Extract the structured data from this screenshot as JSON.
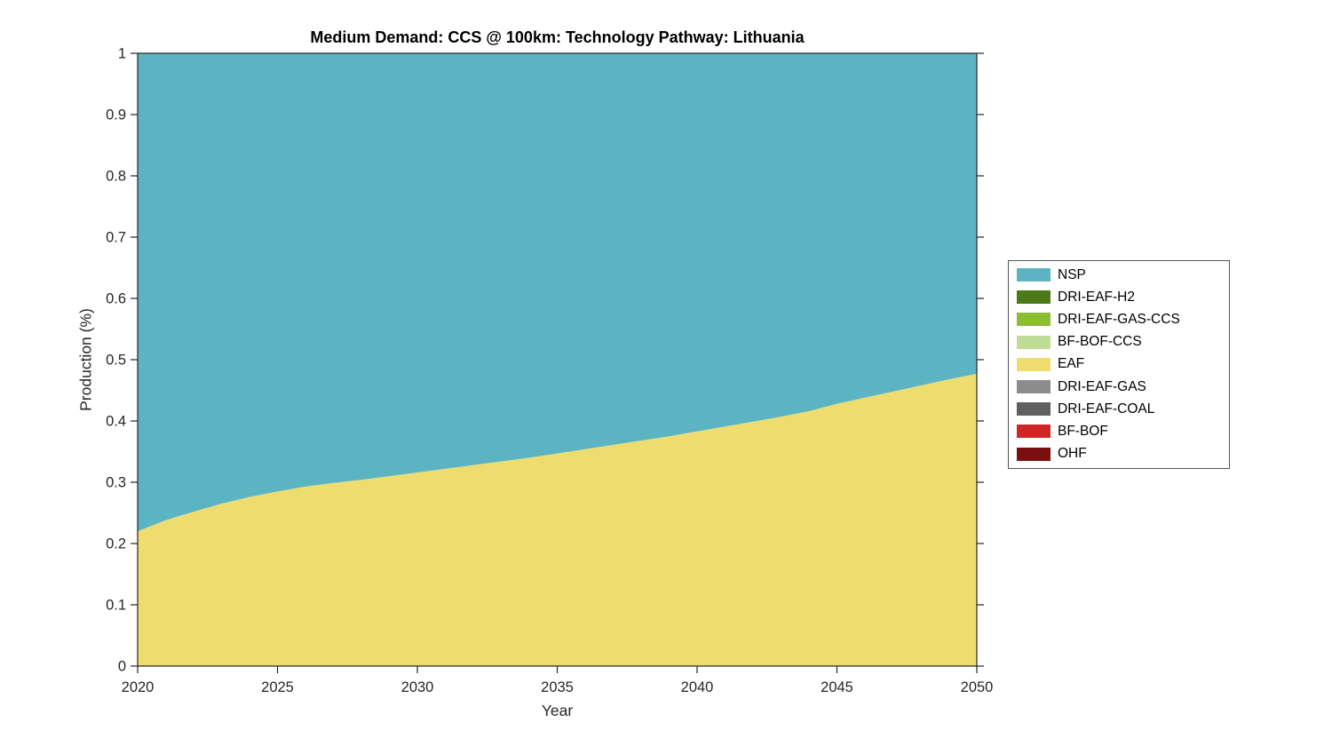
{
  "figure": {
    "background": "#ffffff",
    "axis_color": "#262626",
    "legend_border_color": "#555555"
  },
  "chart_data": {
    "type": "area",
    "title": "Medium Demand: CCS @ 100km: Technology Pathway: Lithuania",
    "xlabel": "Year",
    "ylabel": "Production (%)",
    "xlim": [
      2020,
      2050
    ],
    "ylim": [
      0,
      1
    ],
    "x_ticks": [
      2020,
      2025,
      2030,
      2035,
      2040,
      2045,
      2050
    ],
    "y_ticks": [
      0,
      0.1,
      0.2,
      0.3,
      0.4,
      0.5,
      0.6,
      0.7,
      0.8,
      0.9,
      1
    ],
    "y_tick_labels": [
      "0",
      "0.1",
      "0.2",
      "0.3",
      "0.4",
      "0.5",
      "0.6",
      "0.7",
      "0.8",
      "0.9",
      "1"
    ],
    "grid": false,
    "legend_position": "right-outside",
    "stack_order": "last-series-at-bottom",
    "x": [
      2020,
      2021,
      2022,
      2023,
      2024,
      2025,
      2026,
      2027,
      2028,
      2029,
      2030,
      2031,
      2032,
      2033,
      2034,
      2035,
      2036,
      2037,
      2038,
      2039,
      2040,
      2041,
      2042,
      2043,
      2044,
      2045,
      2046,
      2047,
      2048,
      2049,
      2050
    ],
    "series": [
      {
        "name": "NSP",
        "color": "#5CB4C2",
        "values": [
          0.78,
          0.762,
          0.748,
          0.735,
          0.724,
          0.715,
          0.707,
          0.701,
          0.696,
          0.69,
          0.684,
          0.678,
          0.672,
          0.666,
          0.66,
          0.653,
          0.646,
          0.639,
          0.632,
          0.625,
          0.617,
          0.609,
          0.601,
          0.593,
          0.584,
          0.572,
          0.562,
          0.552,
          0.542,
          0.532,
          0.523
        ]
      },
      {
        "name": "DRI-EAF-H2",
        "color": "#4C7A18",
        "values": [
          0,
          0,
          0,
          0,
          0,
          0,
          0,
          0,
          0,
          0,
          0,
          0,
          0,
          0,
          0,
          0,
          0,
          0,
          0,
          0,
          0,
          0,
          0,
          0,
          0,
          0,
          0,
          0,
          0,
          0,
          0
        ]
      },
      {
        "name": "DRI-EAF-GAS-CCS",
        "color": "#8CBE32",
        "values": [
          0,
          0,
          0,
          0,
          0,
          0,
          0,
          0,
          0,
          0,
          0,
          0,
          0,
          0,
          0,
          0,
          0,
          0,
          0,
          0,
          0,
          0,
          0,
          0,
          0,
          0,
          0,
          0,
          0,
          0,
          0
        ]
      },
      {
        "name": "BF-BOF-CCS",
        "color": "#BEDC96",
        "values": [
          0,
          0,
          0,
          0,
          0,
          0,
          0,
          0,
          0,
          0,
          0,
          0,
          0,
          0,
          0,
          0,
          0,
          0,
          0,
          0,
          0,
          0,
          0,
          0,
          0,
          0,
          0,
          0,
          0,
          0,
          0
        ]
      },
      {
        "name": "EAF",
        "color": "#EFDC6E",
        "values": [
          0.22,
          0.238,
          0.252,
          0.265,
          0.276,
          0.285,
          0.293,
          0.299,
          0.304,
          0.31,
          0.316,
          0.322,
          0.328,
          0.334,
          0.34,
          0.347,
          0.354,
          0.361,
          0.368,
          0.375,
          0.383,
          0.391,
          0.399,
          0.407,
          0.416,
          0.428,
          0.438,
          0.448,
          0.458,
          0.468,
          0.477
        ]
      },
      {
        "name": "DRI-EAF-GAS",
        "color": "#8C8C8C",
        "values": [
          0,
          0,
          0,
          0,
          0,
          0,
          0,
          0,
          0,
          0,
          0,
          0,
          0,
          0,
          0,
          0,
          0,
          0,
          0,
          0,
          0,
          0,
          0,
          0,
          0,
          0,
          0,
          0,
          0,
          0,
          0
        ]
      },
      {
        "name": "DRI-EAF-COAL",
        "color": "#606060",
        "values": [
          0,
          0,
          0,
          0,
          0,
          0,
          0,
          0,
          0,
          0,
          0,
          0,
          0,
          0,
          0,
          0,
          0,
          0,
          0,
          0,
          0,
          0,
          0,
          0,
          0,
          0,
          0,
          0,
          0,
          0,
          0
        ]
      },
      {
        "name": "BF-BOF",
        "color": "#D02626",
        "values": [
          0,
          0,
          0,
          0,
          0,
          0,
          0,
          0,
          0,
          0,
          0,
          0,
          0,
          0,
          0,
          0,
          0,
          0,
          0,
          0,
          0,
          0,
          0,
          0,
          0,
          0,
          0,
          0,
          0,
          0,
          0
        ]
      },
      {
        "name": "OHF",
        "color": "#7A0F0F",
        "values": [
          0,
          0,
          0,
          0,
          0,
          0,
          0,
          0,
          0,
          0,
          0,
          0,
          0,
          0,
          0,
          0,
          0,
          0,
          0,
          0,
          0,
          0,
          0,
          0,
          0,
          0,
          0,
          0,
          0,
          0,
          0
        ]
      }
    ]
  }
}
